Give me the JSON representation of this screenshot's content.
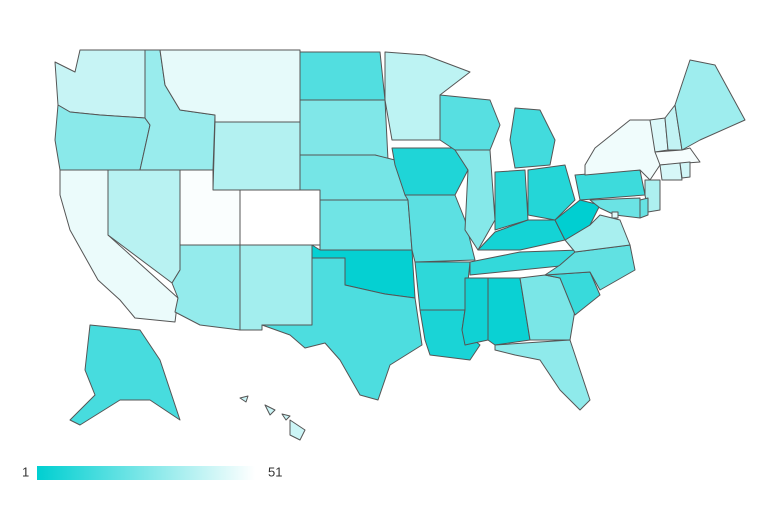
{
  "chart_data": {
    "type": "choropleth",
    "values": [
      40,
      28,
      47,
      37,
      31,
      46,
      36,
      50,
      51,
      30,
      33,
      17,
      26,
      24,
      23,
      2,
      16,
      38,
      7,
      19,
      10,
      6,
      18,
      27,
      14,
      9,
      8,
      5,
      11,
      4,
      3,
      25,
      29,
      12,
      20,
      34,
      1,
      13,
      48,
      44,
      39,
      32,
      49,
      43,
      42,
      35,
      21,
      22,
      45,
      15,
      41
    ],
    "zlim": [
      1,
      51
    ],
    "colorscale": [
      "#00cfd1",
      "#ffffff"
    ],
    "border_color": "#555555"
  }
}
